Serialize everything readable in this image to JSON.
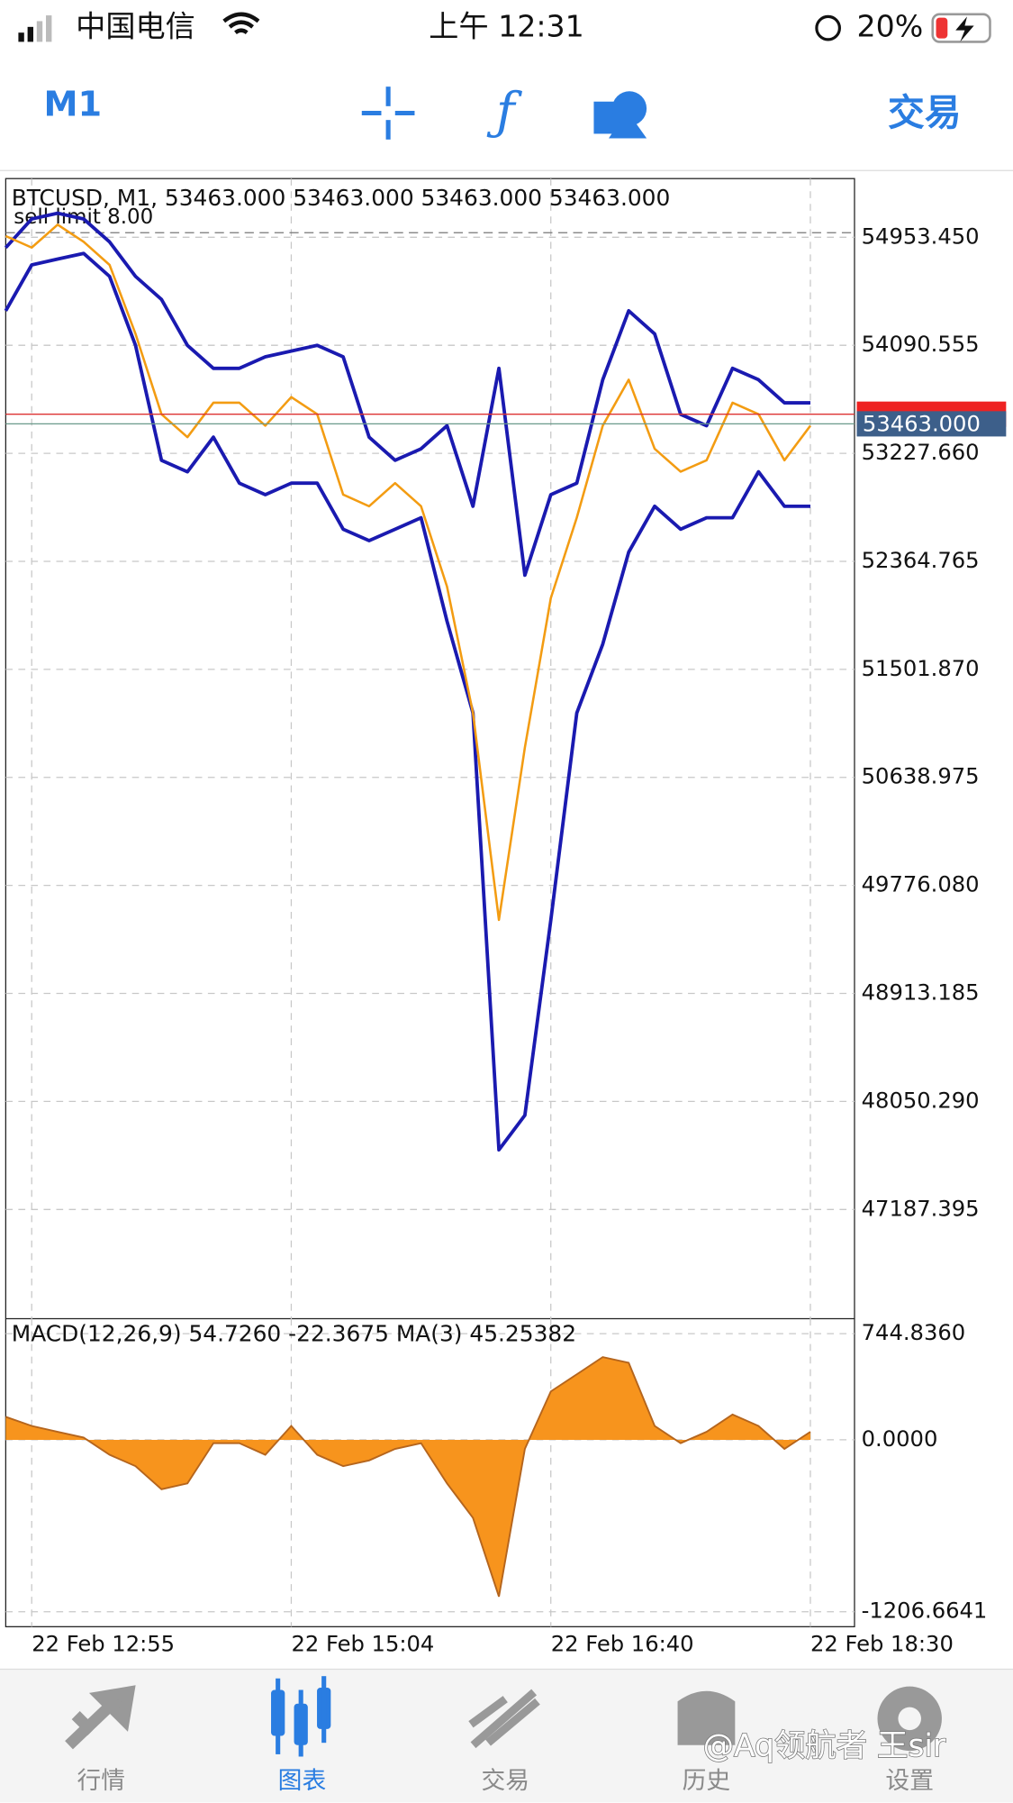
{
  "status_bar": {
    "carrier": "中国电信",
    "time": "上午 12:31",
    "battery": "20%"
  },
  "toolbar": {
    "timeframe": "M1",
    "trade": "交易"
  },
  "chart_data": [
    {
      "type": "line",
      "title": "BTCUSD, M1, 53463.000 53463.000 53463.000 53463.000",
      "x": [
        0,
        2,
        4,
        6,
        8,
        10,
        12,
        14,
        16,
        18,
        20,
        22,
        24,
        26,
        28,
        30,
        32,
        34,
        36,
        38,
        40,
        42,
        44,
        46,
        48,
        50,
        52,
        54,
        56,
        58,
        60,
        62
      ],
      "xlim": [
        0,
        65.4
      ],
      "xticks": [
        {
          "value": 2,
          "label": "22 Feb 12:55"
        },
        {
          "value": 22,
          "label": "22 Feb 15:04"
        },
        {
          "value": 42,
          "label": "22 Feb 16:40"
        },
        {
          "value": 62,
          "label": "22 Feb 18:30"
        }
      ],
      "ylim": [
        46315,
        55422
      ],
      "yticks": [
        {
          "value": 54953.45,
          "label": "54953.450"
        },
        {
          "value": 54090.555,
          "label": "54090.555"
        },
        {
          "value": 53227.66,
          "label": "53227.660"
        },
        {
          "value": 52364.765,
          "label": "52364.765"
        },
        {
          "value": 51501.87,
          "label": "51501.870"
        },
        {
          "value": 50638.975,
          "label": "50638.975"
        },
        {
          "value": 49776.08,
          "label": "49776.080"
        },
        {
          "value": 48913.185,
          "label": "48913.185"
        },
        {
          "value": 48050.29,
          "label": "48050.290"
        },
        {
          "value": 47187.395,
          "label": "47187.395"
        }
      ],
      "grid": true,
      "order_line": {
        "value": 54990,
        "label": "sell limit 8.00"
      },
      "ask_line": 53540,
      "price_line": {
        "value": 53463,
        "label": "53463.000"
      },
      "series": [
        {
          "color": "#1a1ab0",
          "values": [
            54870,
            55100,
            55146,
            55100,
            54916,
            54641,
            54457,
            54090,
            53906,
            53906,
            53998,
            54044,
            54090,
            53998,
            53356,
            53172,
            53264,
            53448,
            52805,
            53906,
            52254,
            52897,
            52989,
            53815,
            54366,
            54182,
            53539,
            53448,
            53906,
            53815,
            53631,
            53631
          ]
        },
        {
          "color": "#1a1ab0",
          "values": [
            54366,
            54733,
            54779,
            54824,
            54641,
            54090,
            53172,
            53080,
            53356,
            52989,
            52897,
            52989,
            52989,
            52621,
            52530,
            52621,
            52713,
            51887,
            51153,
            47664,
            47940,
            49500,
            51153,
            51703,
            52438,
            52805,
            52621,
            52713,
            52713,
            53080,
            52805,
            52805
          ]
        },
        {
          "color": "#f39c12",
          "values": [
            54963,
            54871,
            55054,
            54917,
            54733,
            54182,
            53540,
            53356,
            53632,
            53632,
            53448,
            53677,
            53540,
            52897,
            52805,
            52989,
            52805,
            52163,
            51153,
            49501,
            50878,
            52071,
            52714,
            53448,
            53815,
            53264,
            53081,
            53172,
            53632,
            53540,
            53172,
            53448
          ]
        }
      ]
    },
    {
      "type": "area",
      "title": "MACD(12,26,9) 54.7260 -22.3675 MA(3) 45.25382",
      "x": [
        0,
        2,
        4,
        6,
        8,
        10,
        12,
        14,
        16,
        18,
        20,
        22,
        24,
        26,
        28,
        30,
        32,
        34,
        36,
        38,
        40,
        42,
        44,
        46,
        48,
        50,
        52,
        54,
        56,
        58,
        60,
        62
      ],
      "xlim": [
        0,
        65.4
      ],
      "ylim": [
        -1206.6641,
        744.836
      ],
      "yticks": [
        {
          "value": 744.836,
          "label": "744.8360"
        },
        {
          "value": 0,
          "label": "0.0000"
        },
        -1206.6641
      ],
      "color": "#f7941d",
      "values": [
        161,
        97,
        56,
        16,
        -105,
        -185,
        -347,
        -306,
        -24,
        -24,
        -105,
        97,
        -105,
        -185,
        -145,
        -64,
        -24,
        -306,
        -548,
        -1100,
        -64,
        339,
        459,
        580,
        540,
        97,
        -24,
        56,
        177,
        97,
        -64,
        56
      ]
    }
  ],
  "tab_bar": {
    "tabs": [
      "行情",
      "图表",
      "交易",
      "历史",
      "设置"
    ]
  },
  "watermark": "@Aq领航者 王sir"
}
